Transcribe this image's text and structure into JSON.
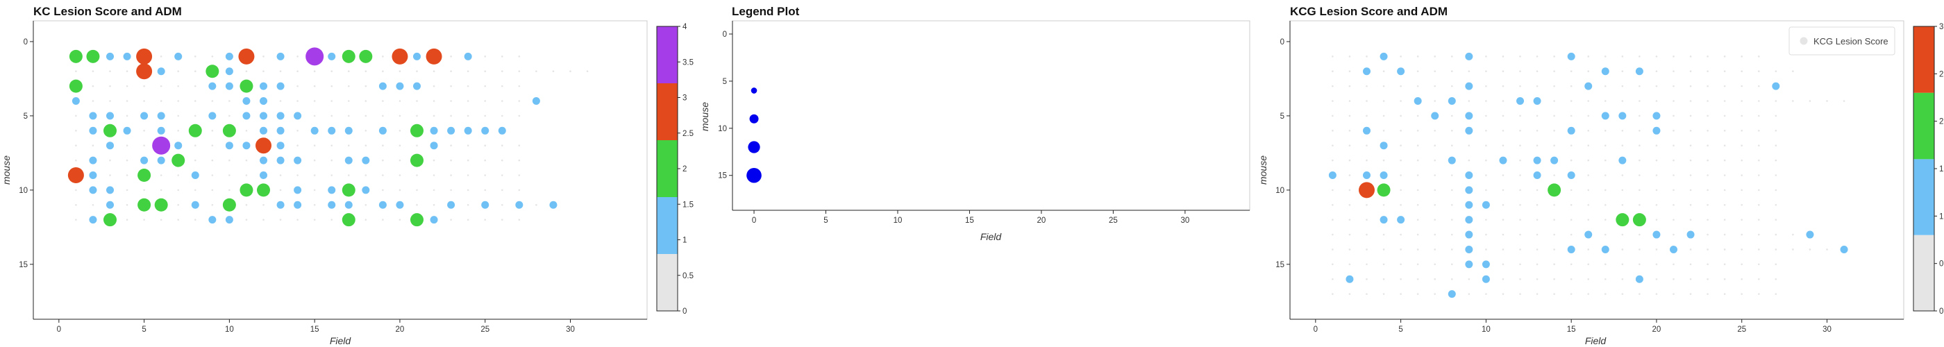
{
  "chart_data": [
    {
      "type": "scatter",
      "title": "KC Lesion Score and ADM",
      "xlabel": "Field",
      "ylabel": "mouse",
      "xlim": [
        -1.5,
        34.5
      ],
      "ylim": [
        18.7,
        -1.4
      ],
      "x_ticks": [
        0,
        5,
        10,
        15,
        20,
        25,
        30
      ],
      "y_ticks": [
        0,
        5,
        10,
        15
      ],
      "y_inverted": true,
      "rows": [
        {
          "mouse": 1,
          "x0": 1,
          "scores": [
            2,
            2,
            1,
            1,
            3,
            0,
            1,
            0,
            0,
            1,
            3,
            0,
            1,
            0,
            4,
            1,
            2,
            2,
            0,
            3,
            1,
            3,
            0,
            1,
            0,
            0,
            0
          ]
        },
        {
          "mouse": 2,
          "x0": 1,
          "scores": [
            0,
            0,
            0,
            0,
            3,
            1,
            0,
            0,
            2,
            1,
            0,
            0,
            0,
            0,
            0,
            0,
            0,
            0,
            0,
            0,
            0,
            0,
            0,
            0,
            0,
            0,
            0,
            0,
            0,
            0,
            0
          ]
        },
        {
          "mouse": 3,
          "x0": 1,
          "scores": [
            2,
            0,
            0,
            0,
            0,
            0,
            0,
            0,
            1,
            1,
            2,
            1,
            1,
            0,
            0,
            0,
            0,
            0,
            1,
            1,
            1,
            0,
            0,
            0,
            0,
            0,
            0
          ]
        },
        {
          "mouse": 4,
          "x0": 1,
          "scores": [
            1,
            0,
            0,
            0,
            0,
            0,
            0,
            0,
            0,
            0,
            1,
            1,
            0,
            0,
            0,
            0,
            0,
            0,
            0,
            0,
            0,
            0,
            0,
            0,
            0,
            0,
            0,
            1
          ]
        },
        {
          "mouse": 5,
          "x0": 1,
          "scores": [
            0,
            1,
            1,
            0,
            1,
            1,
            0,
            0,
            1,
            0,
            1,
            1,
            1,
            1,
            0,
            0,
            0,
            0,
            0,
            0,
            0,
            0,
            0,
            0,
            0,
            0,
            0
          ]
        },
        {
          "mouse": 6,
          "x0": 1,
          "scores": [
            0,
            1,
            2,
            1,
            0,
            1,
            0,
            2,
            0,
            2,
            0,
            1,
            1,
            0,
            1,
            1,
            1,
            0,
            1,
            0,
            2,
            1,
            1,
            1,
            1,
            1
          ]
        },
        {
          "mouse": 7,
          "x0": 1,
          "scores": [
            0,
            0,
            1,
            0,
            0,
            4,
            1,
            0,
            0,
            1,
            1,
            3,
            1,
            0,
            0,
            0,
            0,
            0,
            0,
            0,
            0,
            1,
            0,
            0,
            0,
            0,
            0
          ]
        },
        {
          "mouse": 8,
          "x0": 1,
          "scores": [
            0,
            1,
            0,
            0,
            1,
            1,
            2,
            0,
            0,
            0,
            0,
            1,
            1,
            1,
            0,
            0,
            1,
            1,
            0,
            0,
            2,
            0,
            0,
            0,
            0,
            0,
            0
          ]
        },
        {
          "mouse": 9,
          "x0": 1,
          "scores": [
            3,
            1,
            0,
            0,
            2,
            0,
            0,
            1,
            0,
            0,
            0,
            1,
            0,
            0,
            0,
            0,
            0,
            0,
            0,
            0,
            0,
            0,
            0,
            0,
            0,
            0,
            0
          ]
        },
        {
          "mouse": 10,
          "x0": 1,
          "scores": [
            0,
            1,
            1,
            0,
            0,
            0,
            0,
            0,
            0,
            0,
            2,
            2,
            0,
            1,
            0,
            1,
            2,
            1,
            0,
            0,
            0,
            0,
            0,
            0,
            0,
            0,
            0
          ]
        },
        {
          "mouse": 11,
          "x0": 1,
          "scores": [
            0,
            0,
            1,
            0,
            2,
            2,
            0,
            1,
            0,
            2,
            0,
            0,
            1,
            1,
            0,
            1,
            1,
            0,
            1,
            1,
            0,
            0,
            1,
            0,
            1,
            0,
            1,
            0,
            1
          ]
        },
        {
          "mouse": 12,
          "x0": 1,
          "scores": [
            0,
            1,
            2,
            0,
            0,
            0,
            0,
            0,
            1,
            1,
            0,
            0,
            0,
            0,
            0,
            0,
            2,
            0,
            0,
            0,
            2,
            1,
            0,
            0,
            0,
            0,
            0
          ]
        }
      ],
      "size_by_score": {
        "0": 1.3,
        "1": 5.5,
        "2": 9.5,
        "3": 11.5,
        "4": 13.0
      },
      "colorbar": {
        "ticks": [
          0,
          0.5,
          1,
          1.5,
          2,
          2.5,
          3,
          3.5,
          4
        ],
        "levels": [
          {
            "from": 0,
            "to": 0.8,
            "color": "#e5e5e5"
          },
          {
            "from": 0.8,
            "to": 1.6,
            "color": "#6ec0f5"
          },
          {
            "from": 1.6,
            "to": 2.4,
            "color": "#42d141"
          },
          {
            "from": 2.4,
            "to": 3.2,
            "color": "#e24a1d"
          },
          {
            "from": 3.2,
            "to": 4,
            "color": "#a53ee9"
          }
        ]
      },
      "colors": {
        "0": "#e5e5e5",
        "1": "#6ec0f5",
        "2": "#42d141",
        "3": "#e24a1d",
        "4": "#a53ee9"
      }
    },
    {
      "type": "scatter",
      "title": "Legend Plot",
      "xlabel": "Field",
      "ylabel": "mouse",
      "xlim": [
        -1.5,
        34.5
      ],
      "ylim": [
        18.7,
        -1.4
      ],
      "x_ticks": [
        0,
        5,
        10,
        15,
        20,
        25,
        30
      ],
      "y_ticks": [
        0,
        5,
        10,
        15
      ],
      "points": [
        {
          "x": 0,
          "y": 6,
          "size": 6
        },
        {
          "x": 0,
          "y": 9,
          "size": 9
        },
        {
          "x": 0,
          "y": 12,
          "size": 12
        },
        {
          "x": 0,
          "y": 15,
          "size": 15
        }
      ],
      "color": "#0000ee"
    },
    {
      "type": "scatter",
      "title": "KCG Lesion Score and ADM",
      "xlabel": "Field",
      "ylabel": "mouse",
      "xlim": [
        -1.5,
        34.5
      ],
      "ylim": [
        18.7,
        -1.4
      ],
      "x_ticks": [
        0,
        5,
        10,
        15,
        20,
        25,
        30
      ],
      "y_ticks": [
        0,
        5,
        10,
        15
      ],
      "legend": {
        "label": "KCG Lesion Score",
        "placement": "top-right"
      },
      "rows": [
        {
          "mouse": 1,
          "x0": 1,
          "scores": [
            0,
            0,
            0,
            1,
            0,
            0,
            0,
            0,
            1,
            0,
            0,
            0,
            0,
            0,
            1,
            0,
            0,
            0,
            0,
            0,
            0,
            0,
            0,
            0,
            0,
            0
          ]
        },
        {
          "mouse": 2,
          "x0": 1,
          "scores": [
            0,
            0,
            1,
            0,
            1,
            0,
            0,
            0,
            0,
            0,
            0,
            0,
            0,
            0,
            0,
            0,
            1,
            0,
            1,
            0,
            0,
            0,
            0,
            0,
            0,
            0,
            0,
            0
          ]
        },
        {
          "mouse": 3,
          "x0": 1,
          "scores": [
            0,
            0,
            0,
            0,
            0,
            0,
            0,
            0,
            1,
            0,
            0,
            0,
            0,
            0,
            0,
            1,
            0,
            0,
            0,
            0,
            0,
            0,
            0,
            0,
            0,
            0,
            1
          ]
        },
        {
          "mouse": 4,
          "x0": 1,
          "scores": [
            0,
            0,
            0,
            0,
            0,
            1,
            0,
            1,
            0,
            0,
            0,
            1,
            1,
            0,
            0,
            0,
            0,
            0,
            0,
            0,
            0,
            0,
            0,
            0,
            0,
            0,
            0,
            0,
            0,
            0,
            0
          ]
        },
        {
          "mouse": 5,
          "x0": 1,
          "scores": [
            0,
            0,
            0,
            0,
            0,
            0,
            1,
            0,
            1,
            0,
            0,
            0,
            0,
            0,
            0,
            0,
            1,
            1,
            0,
            1,
            0,
            0,
            0,
            0,
            0,
            0,
            0
          ]
        },
        {
          "mouse": 6,
          "x0": 1,
          "scores": [
            0,
            0,
            1,
            0,
            0,
            0,
            0,
            0,
            1,
            0,
            0,
            0,
            0,
            0,
            1,
            0,
            0,
            0,
            0,
            1,
            0,
            0,
            0,
            0,
            0,
            0,
            0
          ]
        },
        {
          "mouse": 7,
          "x0": 1,
          "scores": [
            0,
            0,
            0,
            1,
            0,
            0,
            0,
            0,
            0,
            0,
            0,
            0,
            0,
            0,
            0,
            0,
            0,
            0,
            0,
            0,
            0,
            0,
            0,
            0,
            0,
            0,
            0
          ]
        },
        {
          "mouse": 8,
          "x0": 1,
          "scores": [
            0,
            0,
            0,
            0,
            0,
            0,
            0,
            1,
            0,
            0,
            1,
            0,
            1,
            1,
            0,
            0,
            0,
            1,
            0,
            0,
            0,
            0,
            0,
            0,
            0,
            0,
            0
          ]
        },
        {
          "mouse": 9,
          "x0": 1,
          "scores": [
            1,
            0,
            1,
            1,
            0,
            0,
            0,
            0,
            1,
            0,
            0,
            0,
            1,
            0,
            1,
            0,
            0,
            0,
            0,
            0,
            0,
            0,
            0,
            0,
            0,
            0,
            0
          ]
        },
        {
          "mouse": 10,
          "x0": 1,
          "scores": [
            0,
            0,
            3,
            2,
            0,
            0,
            0,
            0,
            1,
            0,
            0,
            0,
            0,
            2,
            0,
            0,
            0,
            0,
            0,
            0,
            0,
            0,
            0,
            0,
            0,
            0,
            0
          ]
        },
        {
          "mouse": 11,
          "x0": 1,
          "scores": [
            0,
            0,
            0,
            0,
            0,
            0,
            0,
            0,
            1,
            1,
            0,
            0,
            0,
            0,
            0,
            0,
            0,
            0,
            0,
            0,
            0,
            0,
            0,
            0,
            0,
            0,
            0
          ]
        },
        {
          "mouse": 12,
          "x0": 1,
          "scores": [
            0,
            0,
            0,
            1,
            1,
            0,
            0,
            0,
            1,
            0,
            0,
            0,
            0,
            0,
            0,
            0,
            0,
            2,
            2,
            0,
            0,
            0,
            0,
            0,
            0,
            0,
            0
          ]
        },
        {
          "mouse": 13,
          "x0": 1,
          "scores": [
            0,
            0,
            0,
            0,
            0,
            0,
            0,
            0,
            1,
            0,
            0,
            0,
            0,
            0,
            0,
            1,
            0,
            0,
            0,
            1,
            0,
            1,
            0,
            0,
            0,
            0,
            0,
            0,
            1
          ]
        },
        {
          "mouse": 14,
          "x0": 1,
          "scores": [
            0,
            0,
            0,
            0,
            0,
            0,
            0,
            0,
            1,
            0,
            0,
            0,
            0,
            0,
            1,
            0,
            1,
            0,
            0,
            0,
            1,
            0,
            0,
            0,
            0,
            0,
            0,
            0,
            0,
            0,
            1
          ]
        },
        {
          "mouse": 15,
          "x0": 1,
          "scores": [
            0,
            0,
            0,
            0,
            0,
            0,
            0,
            0,
            1,
            1,
            0,
            0,
            0,
            0,
            0,
            0,
            0,
            0,
            0,
            0,
            0,
            0,
            0,
            0,
            0,
            0,
            0
          ]
        },
        {
          "mouse": 16,
          "x0": 1,
          "scores": [
            0,
            1,
            0,
            0,
            0,
            0,
            0,
            0,
            0,
            1,
            0,
            0,
            0,
            0,
            0,
            0,
            0,
            0,
            1,
            0,
            0,
            0,
            0,
            0,
            0,
            0,
            0
          ]
        },
        {
          "mouse": 17,
          "x0": 1,
          "scores": [
            0,
            0,
            0,
            0,
            0,
            0,
            0,
            1,
            0,
            0,
            0,
            0,
            0,
            0,
            0,
            0,
            0,
            0,
            0,
            0,
            0,
            0,
            0,
            0,
            0,
            0,
            0
          ]
        }
      ],
      "size_by_score": {
        "0": 1.3,
        "1": 5.5,
        "2": 9.5,
        "3": 11.5
      },
      "colorbar": {
        "ticks": [
          0,
          0.5,
          1,
          1.5,
          2,
          2.5,
          3
        ],
        "levels": [
          {
            "from": 0,
            "to": 0.8,
            "color": "#e5e5e5"
          },
          {
            "from": 0.8,
            "to": 1.6,
            "color": "#6ec0f5"
          },
          {
            "from": 1.6,
            "to": 2.3,
            "color": "#42d141"
          },
          {
            "from": 2.3,
            "to": 3,
            "color": "#e24a1d"
          }
        ]
      },
      "colors": {
        "0": "#e5e5e5",
        "1": "#6ec0f5",
        "2": "#42d141",
        "3": "#e24a1d"
      }
    }
  ]
}
